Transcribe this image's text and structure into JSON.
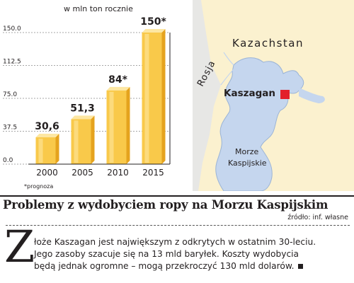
{
  "chart_data": {
    "type": "bar",
    "subtitle": "w mln ton rocznie",
    "categories": [
      "2000",
      "2005",
      "2010",
      "2015"
    ],
    "values": [
      30.6,
      51.3,
      84,
      150
    ],
    "value_labels": [
      "30,6",
      "51,3",
      "84*",
      "150*"
    ],
    "yticks": [
      "150.0",
      "112.5",
      "75.0",
      "37.5",
      "0.0"
    ],
    "ytick_values": [
      150,
      112.5,
      75,
      37.5,
      0
    ],
    "ylim": [
      0,
      150
    ],
    "grid": true,
    "footnote": "*prognoza",
    "colors": {
      "bar_front": "#f9c94a",
      "bar_side": "#e5a31e",
      "bar_top": "#fde7a3",
      "bar_highlight": "#fde08a"
    }
  },
  "map": {
    "labels": {
      "kazakhstan": "Kazachstan",
      "russia": "Rosja",
      "kashagan": "Kaszagan",
      "sea_line1": "Morze",
      "sea_line2": "Kaspijskie"
    },
    "colors": {
      "land": "#fbf1cf",
      "russia_land": "#e7e7e5",
      "water": "#c5d6ee",
      "marker": "#e3202b"
    }
  },
  "article": {
    "headline": "Problemy z wydobyciem ropy na Morzu Kaspijskim",
    "source": "źródło: inf. własne",
    "dropcap": "Z",
    "lines": [
      "łoże Kaszagan jest największym z odkrytych w ostatnim 30-leciu.",
      "Jego zasoby szacuje się na 13 mld baryłek. Koszty wydobycia",
      "będą jednak ogromne – mogą przekroczyć 130 mld dolarów."
    ]
  }
}
